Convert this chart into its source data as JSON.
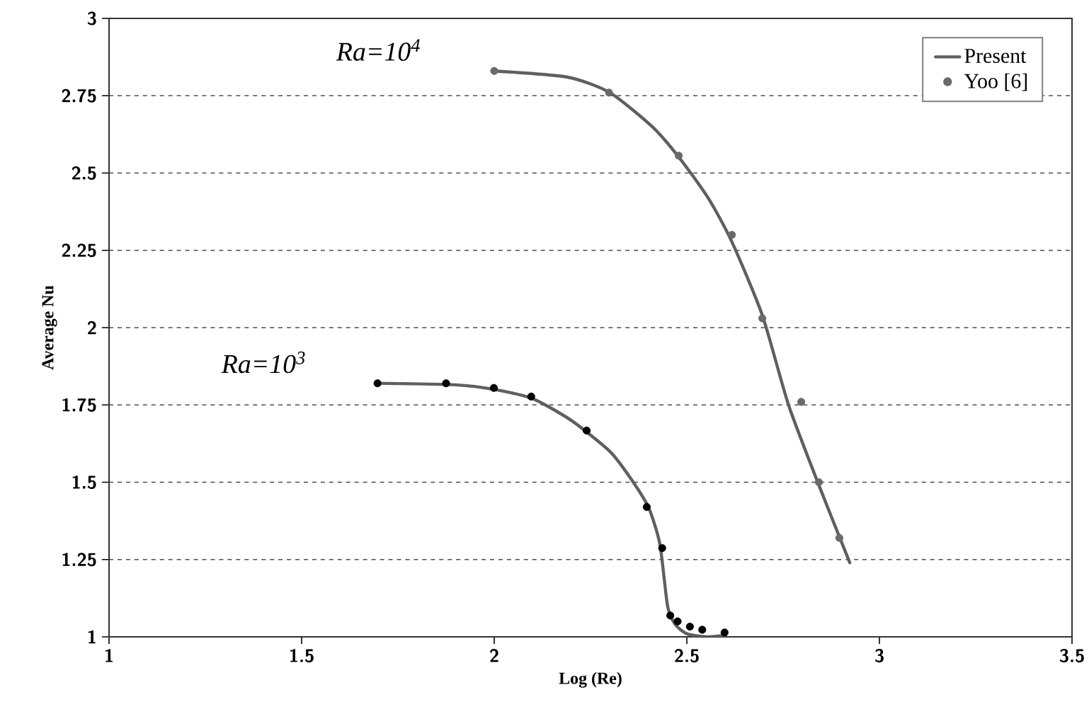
{
  "chart_data": {
    "type": "line",
    "xlabel": "Log (Re)",
    "ylabel": "Average Nu",
    "xlim": [
      1,
      3.5
    ],
    "xticks": [
      1,
      1.5,
      2,
      2.5,
      3,
      3.5
    ],
    "ylim": [
      1,
      3
    ],
    "yticks": [
      1,
      1.25,
      1.5,
      1.75,
      2,
      2.25,
      2.5,
      2.75,
      3
    ],
    "grid": "y",
    "legend": "top right",
    "annotations": [
      {
        "text": "Ra=10$^{4}$",
        "x": 1.998,
        "y": 2.83
      },
      {
        "text": "Ra=10$^{3}$",
        "x": 1.7,
        "y": 1.82
      }
    ],
    "series": [
      {
        "name": "Present",
        "marker": "none",
        "color": "#5f5f5f",
        "x": [
          1.998,
          2.19,
          2.3,
          2.41,
          2.48,
          2.555,
          2.616,
          2.696,
          2.764,
          2.843,
          2.923
        ],
        "values": [
          2.83,
          2.81,
          2.76,
          2.65,
          2.55,
          2.42,
          2.28,
          2.04,
          1.75,
          1.49,
          1.24
        ]
      },
      {
        "marker": "none",
        "color": "#5f5f5f",
        "x": [
          1.7,
          1.9,
          2.0,
          2.1,
          2.2,
          2.3,
          2.35,
          2.4,
          2.43,
          2.45,
          2.47,
          2.5,
          2.55,
          2.6
        ],
        "values": [
          1.82,
          1.815,
          1.8,
          1.77,
          1.7,
          1.6,
          1.52,
          1.42,
          1.3,
          1.1,
          1.04,
          1.01,
          1.0,
          1.005
        ]
      },
      {
        "name": "Yoo [6]",
        "type": "scatter",
        "marker": "circle",
        "color": "#6a6a6a",
        "x": [
          2.0,
          2.298,
          2.479,
          2.617,
          2.696,
          2.797,
          2.843,
          2.896
        ],
        "values": [
          2.83,
          2.76,
          2.556,
          2.3,
          2.03,
          1.76,
          1.5,
          1.32
        ]
      },
      {
        "type": "scatter",
        "marker": "circle",
        "color": "#000000",
        "x": [
          1.697,
          1.875,
          1.999,
          2.096,
          2.24,
          2.396,
          2.436,
          2.457,
          2.476,
          2.508,
          2.54,
          2.598
        ],
        "values": [
          1.82,
          1.82,
          1.805,
          1.777,
          1.667,
          1.42,
          1.287,
          1.069,
          1.05,
          1.033,
          1.023,
          1.014
        ]
      }
    ]
  }
}
